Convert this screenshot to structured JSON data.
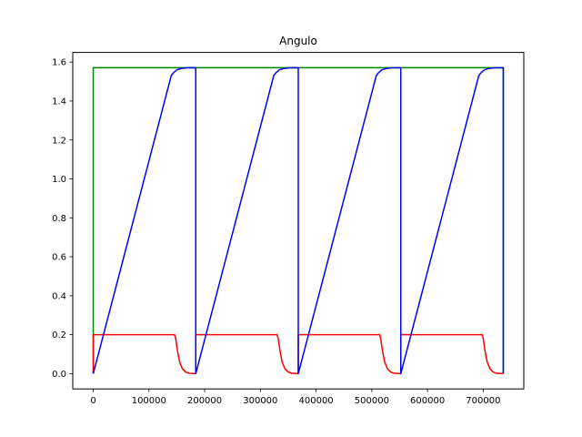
{
  "chart_data": {
    "type": "line",
    "title": "Angulo",
    "xlabel": "",
    "ylabel": "",
    "xlim": [
      -36800,
      772800
    ],
    "ylim": [
      -0.0785,
      1.6493
    ],
    "xticks": [
      0,
      100000,
      200000,
      300000,
      400000,
      500000,
      600000,
      700000
    ],
    "xtick_labels": [
      "0",
      "100000",
      "200000",
      "300000",
      "400000",
      "500000",
      "600000",
      "700000"
    ],
    "yticks": [
      0.0,
      0.2,
      0.4,
      0.6,
      0.8,
      1.0,
      1.2,
      1.4,
      1.6
    ],
    "ytick_labels": [
      "0.0",
      "0.2",
      "0.4",
      "0.6",
      "0.8",
      "1.0",
      "1.2",
      "1.4",
      "1.6"
    ],
    "grid": false,
    "legend": "none",
    "series": [
      {
        "color": "#008000",
        "points": [
          [
            0,
            0
          ],
          [
            0,
            1.5708
          ],
          [
            736000,
            1.5708
          ],
          [
            736000,
            0
          ]
        ]
      },
      {
        "color": "#ff0000",
        "points": [
          [
            0,
            0
          ],
          [
            0,
            0.2
          ],
          [
            146000,
            0.2
          ],
          [
            148000,
            0.18
          ],
          [
            151000,
            0.12
          ],
          [
            155000,
            0.06
          ],
          [
            160000,
            0.025
          ],
          [
            166000,
            0.008
          ],
          [
            172000,
            0.002
          ],
          [
            184000,
            0
          ],
          [
            184000,
            0.2
          ],
          [
            330000,
            0.2
          ],
          [
            332000,
            0.18
          ],
          [
            335000,
            0.12
          ],
          [
            339000,
            0.06
          ],
          [
            344000,
            0.025
          ],
          [
            350000,
            0.008
          ],
          [
            356000,
            0.002
          ],
          [
            368000,
            0
          ],
          [
            368000,
            0.2
          ],
          [
            514000,
            0.2
          ],
          [
            516000,
            0.18
          ],
          [
            519000,
            0.12
          ],
          [
            523000,
            0.06
          ],
          [
            528000,
            0.025
          ],
          [
            534000,
            0.008
          ],
          [
            540000,
            0.002
          ],
          [
            552000,
            0
          ],
          [
            552000,
            0.2
          ],
          [
            698000,
            0.2
          ],
          [
            700000,
            0.18
          ],
          [
            703000,
            0.12
          ],
          [
            707000,
            0.06
          ],
          [
            712000,
            0.025
          ],
          [
            718000,
            0.008
          ],
          [
            724000,
            0.002
          ],
          [
            736000,
            0
          ],
          [
            736000,
            0
          ]
        ]
      },
      {
        "color": "#0000ff",
        "points": [
          [
            0,
            0
          ],
          [
            140000,
            1.53
          ],
          [
            144000,
            1.545
          ],
          [
            150000,
            1.56
          ],
          [
            158000,
            1.567
          ],
          [
            168000,
            1.5705
          ],
          [
            184000,
            1.5708
          ],
          [
            184000,
            0
          ],
          [
            324000,
            1.53
          ],
          [
            328000,
            1.545
          ],
          [
            334000,
            1.56
          ],
          [
            342000,
            1.567
          ],
          [
            352000,
            1.5705
          ],
          [
            368000,
            1.5708
          ],
          [
            368000,
            0
          ],
          [
            508000,
            1.53
          ],
          [
            512000,
            1.545
          ],
          [
            518000,
            1.56
          ],
          [
            526000,
            1.567
          ],
          [
            536000,
            1.5705
          ],
          [
            552000,
            1.5708
          ],
          [
            552000,
            0
          ],
          [
            692000,
            1.53
          ],
          [
            696000,
            1.545
          ],
          [
            702000,
            1.56
          ],
          [
            710000,
            1.567
          ],
          [
            720000,
            1.5705
          ],
          [
            736000,
            1.5708
          ],
          [
            736000,
            0
          ]
        ]
      }
    ]
  }
}
